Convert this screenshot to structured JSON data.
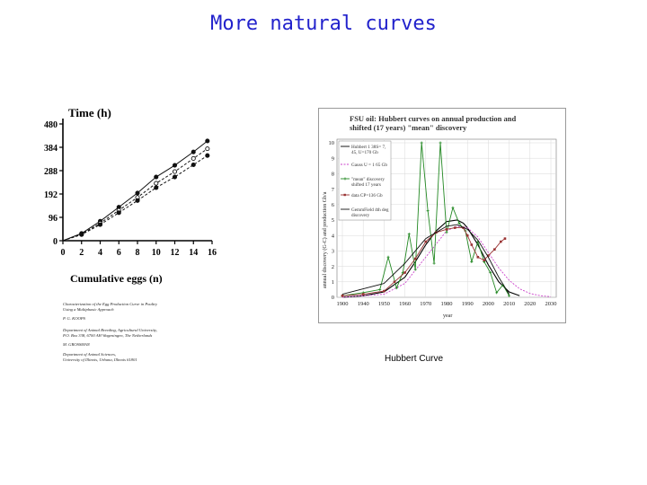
{
  "slide": {
    "title": "More natural curves",
    "caption": "Hubbert Curve"
  },
  "chart_data": [
    {
      "type": "line",
      "title": "Time (h)",
      "xlabel": "Cumulative eggs (n)",
      "ylabel": "",
      "x_ticks": [
        "0",
        "2",
        "4",
        "6",
        "8",
        "10",
        "12",
        "14",
        "16"
      ],
      "y_ticks": [
        "0",
        "96",
        "192",
        "288",
        "384",
        "480"
      ],
      "xlim": [
        0,
        16
      ],
      "ylim": [
        0,
        480
      ],
      "series": [
        {
          "values": [
            [
              0,
              0
            ],
            [
              2,
              30
            ],
            [
              4,
              80
            ],
            [
              6,
              138
            ],
            [
              8,
              196
            ],
            [
              10,
              262
            ],
            [
              12,
              310
            ],
            [
              14,
              365
            ],
            [
              15.5,
              410
            ]
          ],
          "color": "#111111",
          "marker": "filled-circle",
          "dash": "solid"
        },
        {
          "values": [
            [
              0,
              0
            ],
            [
              2,
              27
            ],
            [
              4,
              72
            ],
            [
              6,
              125
            ],
            [
              8,
              178
            ],
            [
              10,
              236
            ],
            [
              12,
              284
            ],
            [
              14,
              338
            ],
            [
              15.5,
              378
            ]
          ],
          "color": "#111111",
          "marker": "open-circle",
          "dash": "dashed"
        },
        {
          "values": [
            [
              0,
              0
            ],
            [
              2,
              25
            ],
            [
              4,
              66
            ],
            [
              6,
              115
            ],
            [
              8,
              165
            ],
            [
              10,
              218
            ],
            [
              12,
              262
            ],
            [
              14,
              312
            ],
            [
              15.5,
              350
            ]
          ],
          "color": "#111111",
          "marker": "filled-circle",
          "dash": "dashed"
        }
      ],
      "paper_text": [
        "Characterization of the Egg Production Curve in Poultry",
        "Using a Multiphasic Approach",
        "P. G. KOOPS",
        "Department of Animal Breeding, Agricultural University,",
        "P.O. Box 338, 6700 AH Wageningen, The Netherlands",
        "M. GROSSMAN",
        "Department of Animal Sciences,",
        "University of Illinois, Urbana, Illinois 61801"
      ]
    },
    {
      "type": "line",
      "title": "FSU oil: Hubbert curves on annual production and shifted (17 years) \"mean\" discovery",
      "xlabel": "year",
      "ylabel": "annual discovery (G-C) and production Gb/a",
      "x_ticks": [
        "1900",
        "1940",
        "1950",
        "1960",
        "1970",
        "1980",
        "1990",
        "2000",
        "2010",
        "2020",
        "2030"
      ],
      "y_ticks": [
        "0",
        "1",
        "2",
        "3",
        "4",
        "5",
        "6",
        "7",
        "8",
        "9",
        "10"
      ],
      "xlim": [
        1930,
        2030
      ],
      "ylim": [
        0,
        10
      ],
      "grid": true,
      "legend": [
        "Hubbert 1 38S= 7, 45, U=170 Gb",
        "Gauss U = 1 65 Gb",
        "\"mean\" discovery shifted 17 years",
        "data CP=136 Gb",
        "GemmField 4th deg discovery"
      ],
      "legend_position": "top-left",
      "series": [
        {
          "name": "Hubbert 1 38S= 7, 45, U=170 Gb",
          "color": "#000000",
          "x": [
            1930,
            1940,
            1950,
            1960,
            1965,
            1970,
            1975,
            1980,
            1985,
            1988,
            1990,
            1995,
            2000,
            2005,
            2010,
            2015
          ],
          "values": [
            0.0,
            0.1,
            0.35,
            1.3,
            2.3,
            3.4,
            4.3,
            4.9,
            5.0,
            4.8,
            4.5,
            3.4,
            2.1,
            1.0,
            0.35,
            0.1
          ]
        },
        {
          "name": "Gauss U = 1 65 Gb",
          "color": "#cc44cc",
          "x": [
            1930,
            1950,
            1960,
            1970,
            1980,
            1985,
            1990,
            1995,
            2000,
            2005,
            2010,
            2015,
            2020,
            2025,
            2030
          ],
          "values": [
            0.0,
            0.2,
            0.9,
            2.6,
            4.3,
            4.6,
            4.5,
            3.9,
            2.9,
            1.9,
            1.1,
            0.55,
            0.25,
            0.1,
            0.04
          ]
        },
        {
          "name": "\"mean\" discovery shifted 17 years",
          "color": "#228822",
          "x": [
            1930,
            1940,
            1948,
            1952,
            1956,
            1959,
            1962,
            1965,
            1968,
            1971,
            1974,
            1977,
            1980,
            1983,
            1986,
            1989,
            1992,
            1995,
            1998,
            2001,
            2004,
            2007,
            2010
          ],
          "values": [
            0.1,
            0.3,
            0.5,
            2.6,
            0.6,
            1.6,
            4.1,
            1.8,
            10.0,
            5.6,
            2.2,
            10.0,
            4.2,
            5.8,
            4.8,
            4.3,
            2.3,
            3.6,
            2.3,
            1.6,
            0.3,
            0.8,
            0.1
          ]
        },
        {
          "name": "data CP=136 Gb",
          "color": "#993333",
          "x": [
            1930,
            1940,
            1950,
            1955,
            1960,
            1965,
            1970,
            1975,
            1980,
            1984,
            1988,
            1990,
            1992,
            1995,
            1998,
            2000,
            2003,
            2006,
            2008
          ],
          "values": [
            0.1,
            0.2,
            0.4,
            1.0,
            1.6,
            2.5,
            3.6,
            4.2,
            4.4,
            4.5,
            4.5,
            4.0,
            3.4,
            2.6,
            2.4,
            2.7,
            3.1,
            3.6,
            3.8
          ]
        },
        {
          "name": "GemmField 4th deg discovery",
          "color": "#111111",
          "x": [
            1930,
            1950,
            1960,
            1970,
            1980,
            1985,
            1990,
            1995,
            2000,
            2005,
            2010
          ],
          "values": [
            0.2,
            0.9,
            2.2,
            3.8,
            4.6,
            4.7,
            4.4,
            3.7,
            2.6,
            1.3,
            0.2
          ]
        }
      ]
    }
  ]
}
